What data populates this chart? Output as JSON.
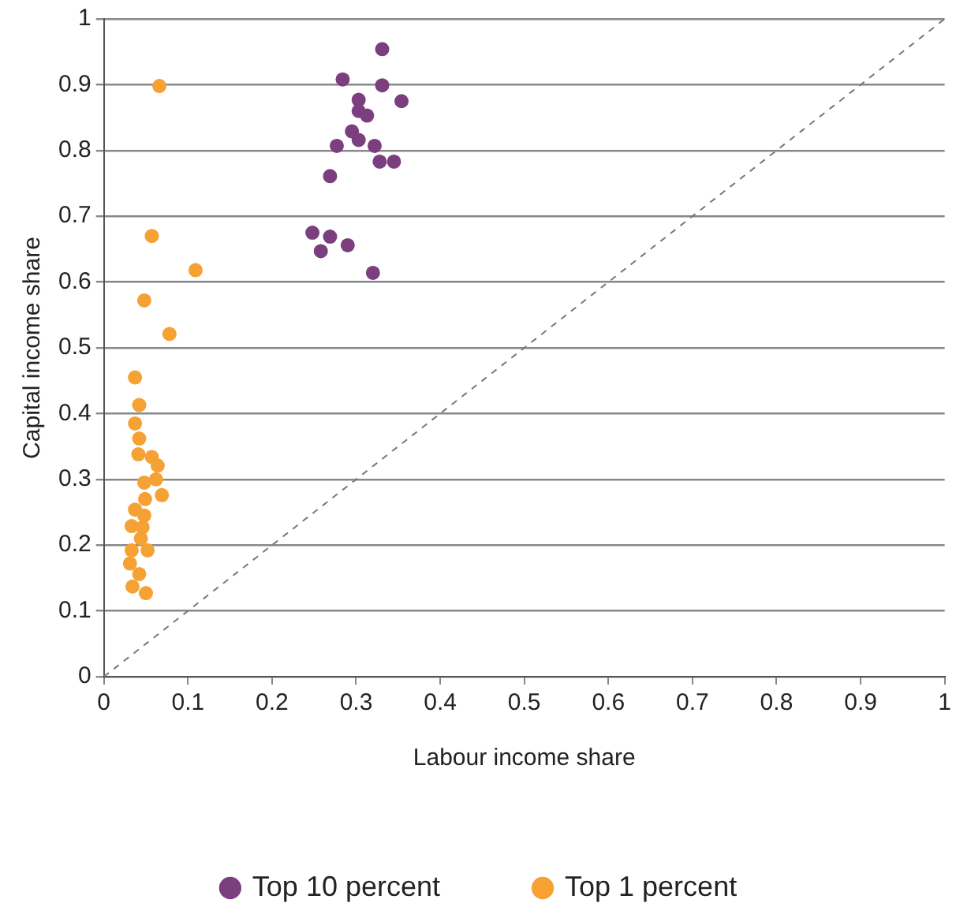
{
  "chart_data": {
    "type": "scatter",
    "xlabel": "Labour income share",
    "ylabel": "Capital income share",
    "xlim": [
      0,
      1
    ],
    "ylim": [
      0,
      1
    ],
    "xticks": [
      0,
      0.1,
      0.2,
      0.3,
      0.4,
      0.5,
      0.6,
      0.7,
      0.8,
      0.9,
      1
    ],
    "yticks": [
      0,
      0.1,
      0.2,
      0.3,
      0.4,
      0.5,
      0.6,
      0.7,
      0.8,
      0.9,
      1
    ],
    "grid": "y",
    "legend": "bottom",
    "marker": "circle",
    "series": [
      {
        "name": "Top 10 percent",
        "color": "#7b3f7f",
        "x": [
          0.331,
          0.284,
          0.331,
          0.303,
          0.354,
          0.303,
          0.313,
          0.295,
          0.303,
          0.322,
          0.277,
          0.328,
          0.345,
          0.269,
          0.248,
          0.269,
          0.258,
          0.29,
          0.32
        ],
        "values": [
          0.954,
          0.908,
          0.899,
          0.877,
          0.875,
          0.86,
          0.853,
          0.829,
          0.816,
          0.807,
          0.807,
          0.783,
          0.783,
          0.761,
          0.675,
          0.669,
          0.647,
          0.656,
          0.614
        ]
      },
      {
        "name": "Top 1 percent",
        "color": "#f5a134",
        "x": [
          0.066,
          0.057,
          0.109,
          0.048,
          0.078,
          0.037,
          0.042,
          0.037,
          0.042,
          0.041,
          0.057,
          0.064,
          0.062,
          0.048,
          0.069,
          0.049,
          0.037,
          0.048,
          0.033,
          0.046,
          0.044,
          0.033,
          0.052,
          0.031,
          0.042,
          0.034,
          0.05
        ],
        "values": [
          0.898,
          0.67,
          0.618,
          0.572,
          0.521,
          0.455,
          0.413,
          0.385,
          0.362,
          0.338,
          0.334,
          0.321,
          0.3,
          0.295,
          0.276,
          0.27,
          0.254,
          0.245,
          0.229,
          0.227,
          0.21,
          0.192,
          0.192,
          0.172,
          0.156,
          0.137,
          0.127
        ]
      },
      {
        "type": "line",
        "color": "#777777",
        "x": [
          0,
          1
        ],
        "values": [
          0,
          1
        ],
        "line_style": "dashed",
        "marker": "none"
      }
    ]
  }
}
